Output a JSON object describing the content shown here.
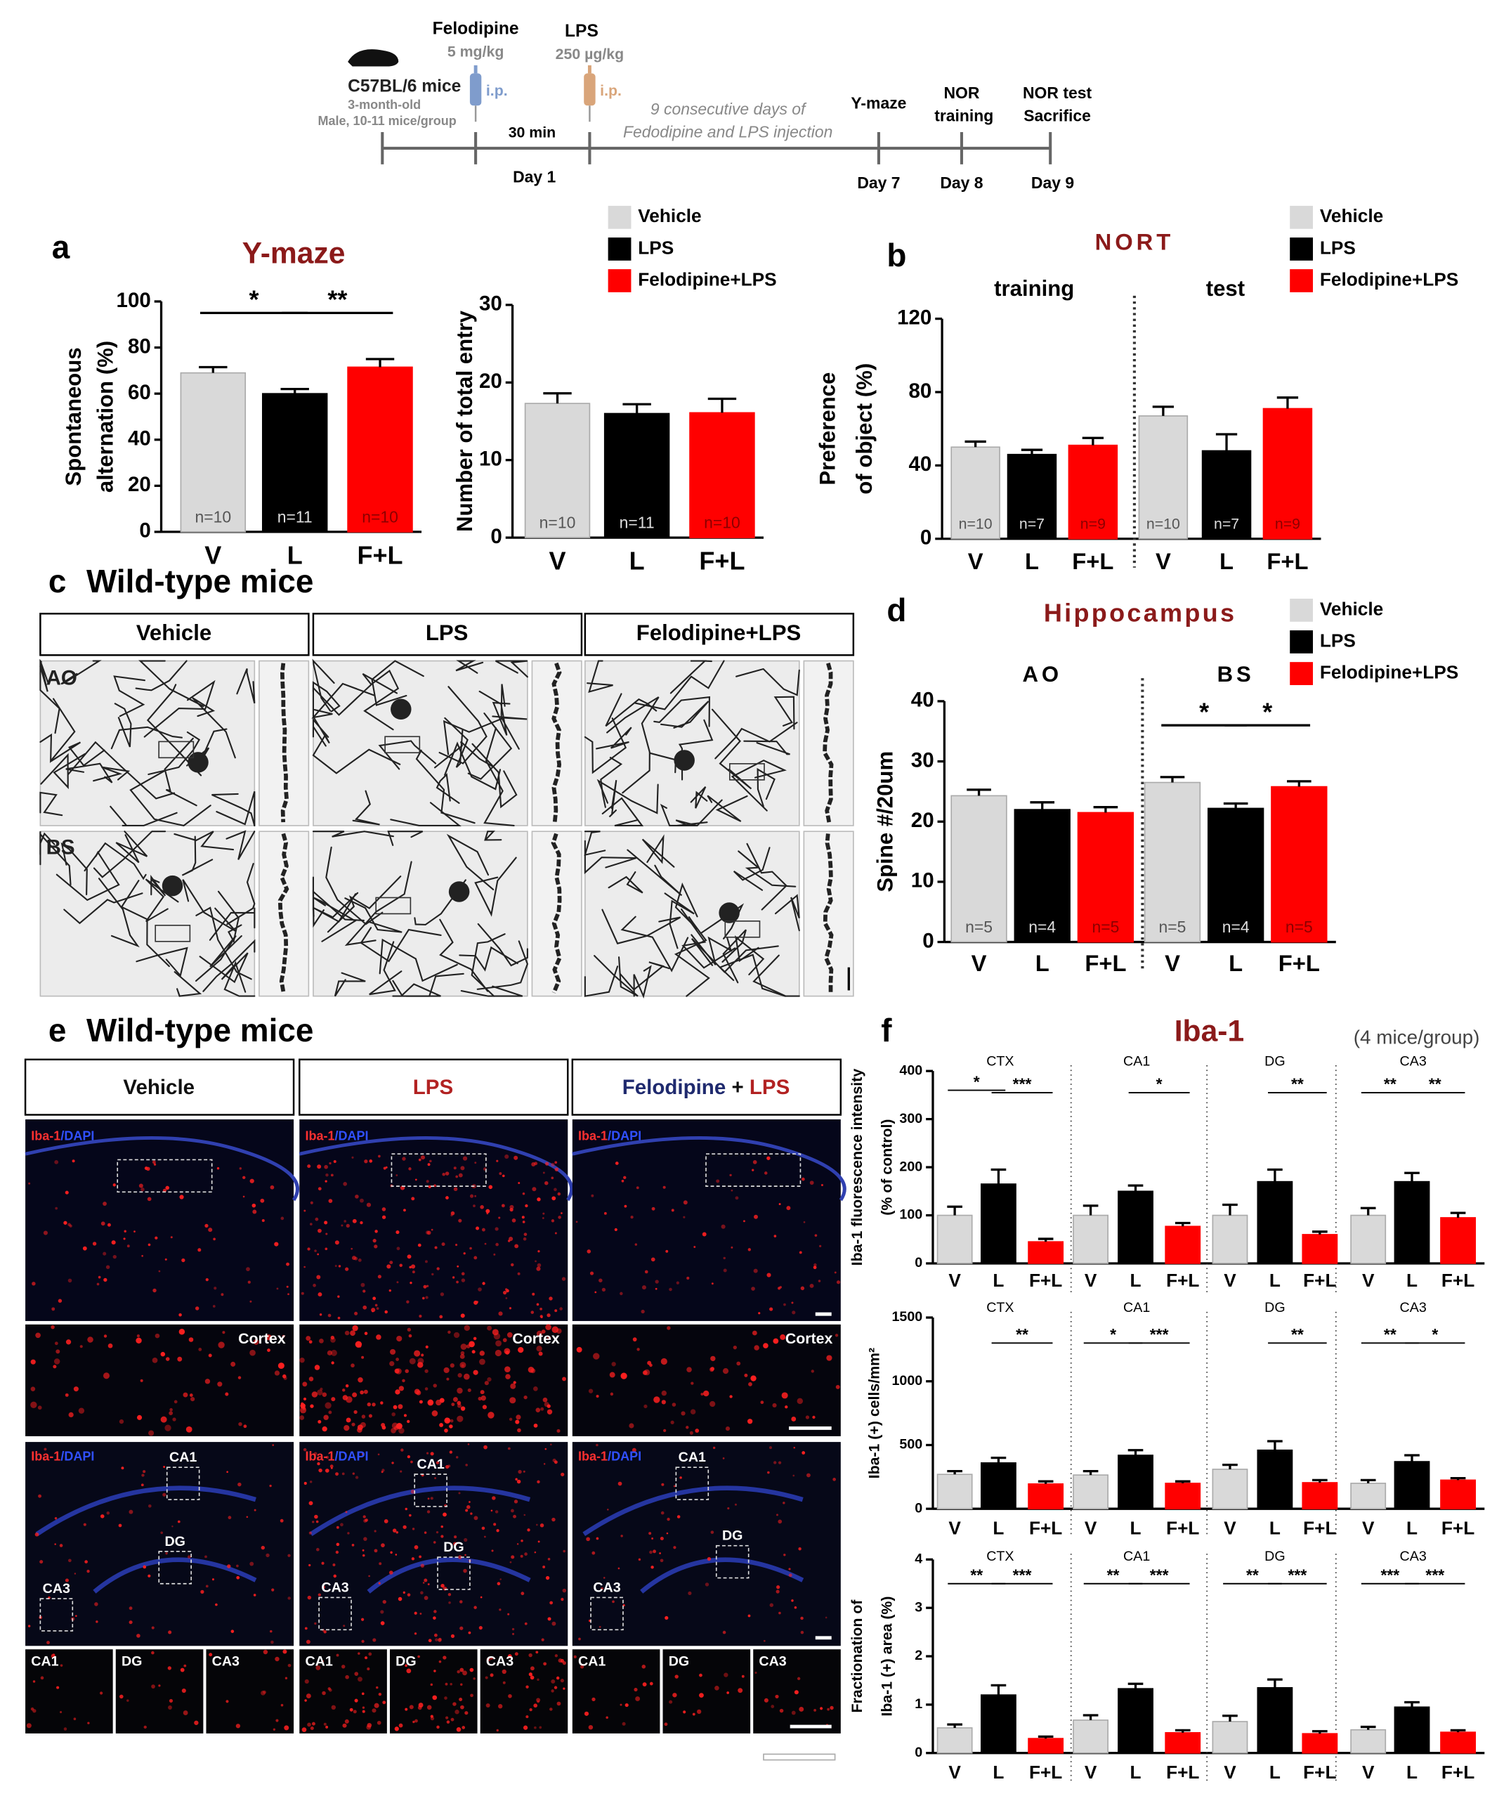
{
  "timeline": {
    "mouse": {
      "strain": "C57BL/6 mice",
      "age": "3-month-old",
      "group": "Male, 10-11 mice/group"
    },
    "drug1": {
      "name": "Felodipine",
      "dose": "5 mg/kg",
      "route": "i.p."
    },
    "drug2": {
      "name": "LPS",
      "dose": "250 µg/kg",
      "route": "i.p."
    },
    "interval": "30 min",
    "note": [
      "9 consecutive days of",
      "Fedodipine and LPS injection"
    ],
    "start_day": "Day 1",
    "events": [
      {
        "label": [
          "Y-maze"
        ],
        "day": "Day 7"
      },
      {
        "label": [
          "NOR",
          "training"
        ],
        "day": "Day 8"
      },
      {
        "label": [
          "NOR test",
          "Sacrifice"
        ],
        "day": "Day 9"
      }
    ]
  },
  "panel_c": {
    "letter": "c",
    "title": "Wild-type mice",
    "columns": [
      "Vehicle",
      "LPS",
      "Felodipine+LPS"
    ],
    "rows": [
      "AO",
      "BS"
    ]
  },
  "panel_e": {
    "letter": "e",
    "title": "Wild-type mice",
    "columns": [
      [
        "Vehicle"
      ],
      [
        "LPS"
      ],
      [
        "Felodipine",
        "+",
        "LPS"
      ]
    ],
    "stain_label": [
      "Iba-1",
      "/DAPI"
    ],
    "inset_label": "Cortex",
    "regions": [
      "CA1",
      "DG",
      "CA3"
    ]
  },
  "chart_data": [
    {
      "type": "bar",
      "panel": "a",
      "title": "Y-maze",
      "ylabel": [
        "Spontaneous",
        "alternation (%)"
      ],
      "categories": [
        null
      ],
      "bar_labels": [
        "V",
        "L",
        "F+L"
      ],
      "series": [
        {
          "name": "Vehicle",
          "color": "#d9d9d9",
          "values": [
            69
          ],
          "errors": [
            2.5
          ],
          "n_labels": [
            "n=10"
          ]
        },
        {
          "name": "LPS",
          "color": "#000000",
          "values": [
            60
          ],
          "errors": [
            2
          ],
          "n_labels": [
            "n=11"
          ]
        },
        {
          "name": "Felodipine+LPS",
          "color": "#ff0000",
          "values": [
            71.5
          ],
          "errors": [
            3.5
          ],
          "n_labels": [
            "n=10"
          ]
        }
      ],
      "ylim": [
        0,
        100
      ],
      "yticks": [
        0,
        20,
        40,
        60,
        80,
        100
      ],
      "significance": [
        "*",
        "**"
      ],
      "legend": false
    },
    {
      "type": "bar",
      "ylabel": [
        "Number of total entry"
      ],
      "categories": [
        null
      ],
      "bar_labels": [
        "V",
        "L",
        "F+L"
      ],
      "series": [
        {
          "name": "Vehicle",
          "color": "#d9d9d9",
          "values": [
            17.3
          ],
          "errors": [
            1.3
          ],
          "n_labels": [
            "n=10"
          ]
        },
        {
          "name": "LPS",
          "color": "#000000",
          "values": [
            16
          ],
          "errors": [
            1.2
          ],
          "n_labels": [
            "n=11"
          ]
        },
        {
          "name": "Felodipine+LPS",
          "color": "#ff0000",
          "values": [
            16.1
          ],
          "errors": [
            1.8
          ],
          "n_labels": [
            "n=10"
          ]
        }
      ],
      "ylim": [
        0,
        30
      ],
      "yticks": [
        0,
        10,
        20,
        30
      ],
      "significance": [],
      "legend": true
    },
    {
      "type": "bar",
      "panel": "b",
      "title": "NORT",
      "ylabel": [
        "Preference",
        "of object (%)"
      ],
      "categories": [
        "training",
        "test"
      ],
      "bar_labels": [
        "V",
        "L",
        "F+L"
      ],
      "series": [
        {
          "name": "Vehicle",
          "color": "#d9d9d9",
          "values": [
            50,
            67
          ],
          "errors": [
            3,
            5
          ],
          "n_labels": [
            "n=10",
            "n=10"
          ]
        },
        {
          "name": "LPS",
          "color": "#000000",
          "values": [
            46,
            48
          ],
          "errors": [
            2.5,
            9
          ],
          "n_labels": [
            "n=7",
            "n=7"
          ]
        },
        {
          "name": "Felodipine+LPS",
          "color": "#ff0000",
          "values": [
            51,
            71
          ],
          "errors": [
            4,
            6
          ],
          "n_labels": [
            "n=9",
            "n=9"
          ]
        }
      ],
      "ylim": [
        0,
        120
      ],
      "yticks": [
        0,
        40,
        80,
        120
      ],
      "significance": [],
      "legend": true
    },
    {
      "type": "bar",
      "panel": "d",
      "title": "Hippocampus",
      "ylabel": [
        "Spine #/20um"
      ],
      "categories": [
        "AO",
        "BS"
      ],
      "bar_labels": [
        "V",
        "L",
        "F+L"
      ],
      "series": [
        {
          "name": "Vehicle",
          "color": "#d9d9d9",
          "values": [
            24.3,
            26.5
          ],
          "errors": [
            1,
            0.9
          ],
          "n_labels": [
            "n=5",
            "n=5"
          ]
        },
        {
          "name": "LPS",
          "color": "#000000",
          "values": [
            22,
            22.2
          ],
          "errors": [
            1.2,
            0.8
          ],
          "n_labels": [
            "n=4",
            "n=4"
          ]
        },
        {
          "name": "Felodipine+LPS",
          "color": "#ff0000",
          "values": [
            21.5,
            25.8
          ],
          "errors": [
            0.9,
            0.9
          ],
          "n_labels": [
            "n=5",
            "n=5"
          ]
        }
      ],
      "ylim": [
        0,
        40
      ],
      "yticks": [
        0,
        10,
        20,
        30,
        40
      ],
      "significance": [
        "*",
        "*"
      ],
      "legend": true
    },
    {
      "type": "bar",
      "panel": "f",
      "title": "Iba-1",
      "note": "(4 mice/group)",
      "ylabel": [
        "Iba-1 fluorescence intensity",
        "(% of control)"
      ],
      "categories": [
        "CTX",
        "CA1",
        "DG",
        "CA3"
      ],
      "bar_labels": [
        "V",
        "L",
        "F+L"
      ],
      "series": [
        {
          "name": "Vehicle",
          "color": "#d9d9d9",
          "values": [
            100,
            100,
            100,
            100
          ],
          "errors": [
            18,
            20,
            22,
            15
          ]
        },
        {
          "name": "LPS",
          "color": "#000000",
          "values": [
            165,
            150,
            170,
            170
          ],
          "errors": [
            30,
            12,
            25,
            18
          ]
        },
        {
          "name": "Felodipine+LPS",
          "color": "#ff0000",
          "values": [
            45,
            77,
            60,
            95
          ],
          "errors": [
            6,
            7,
            6,
            10
          ]
        }
      ],
      "ylim": [
        0,
        400
      ],
      "yticks": [
        0,
        100,
        200,
        300,
        400
      ],
      "significance": [
        "*",
        "***",
        "*",
        "**",
        "**",
        "**"
      ],
      "legend": false
    },
    {
      "type": "bar",
      "ylabel": [
        "Iba-1 (+) cells/mm²"
      ],
      "categories": [
        "CTX",
        "CA1",
        "DG",
        "CA3"
      ],
      "bar_labels": [
        "V",
        "L",
        "F+L"
      ],
      "series": [
        {
          "name": "Vehicle",
          "color": "#d9d9d9",
          "values": [
            270,
            265,
            310,
            200
          ],
          "errors": [
            25,
            30,
            35,
            25
          ]
        },
        {
          "name": "LPS",
          "color": "#000000",
          "values": [
            360,
            420,
            460,
            370
          ],
          "errors": [
            40,
            40,
            70,
            50
          ]
        },
        {
          "name": "Felodipine+LPS",
          "color": "#ff0000",
          "values": [
            195,
            200,
            205,
            225
          ],
          "errors": [
            20,
            15,
            20,
            15
          ]
        }
      ],
      "ylim": [
        0,
        1500
      ],
      "yticks": [
        0,
        500,
        1000,
        1500
      ],
      "significance": [
        "**",
        "*",
        "***",
        "**",
        "**",
        "*"
      ],
      "legend": false
    },
    {
      "type": "bar",
      "ylabel": [
        "Fractionation of",
        "Iba-1 (+) area (%)"
      ],
      "categories": [
        "CTX",
        "CA1",
        "DG",
        "CA3"
      ],
      "bar_labels": [
        "V",
        "L",
        "F+L"
      ],
      "series": [
        {
          "name": "Vehicle",
          "color": "#d9d9d9",
          "values": [
            0.52,
            0.68,
            0.65,
            0.48
          ],
          "errors": [
            0.07,
            0.1,
            0.12,
            0.06
          ]
        },
        {
          "name": "LPS",
          "color": "#000000",
          "values": [
            1.2,
            1.33,
            1.35,
            0.95
          ],
          "errors": [
            0.2,
            0.1,
            0.17,
            0.1
          ]
        },
        {
          "name": "Felodipine+LPS",
          "color": "#ff0000",
          "values": [
            0.3,
            0.42,
            0.4,
            0.43
          ],
          "errors": [
            0.04,
            0.05,
            0.05,
            0.04
          ]
        }
      ],
      "ylim": [
        0,
        4
      ],
      "yticks": [
        0,
        1,
        2,
        3,
        4
      ],
      "significance": [
        "**",
        "***",
        "**",
        "***",
        "**",
        "***",
        "***",
        "***"
      ],
      "legend": false
    }
  ]
}
